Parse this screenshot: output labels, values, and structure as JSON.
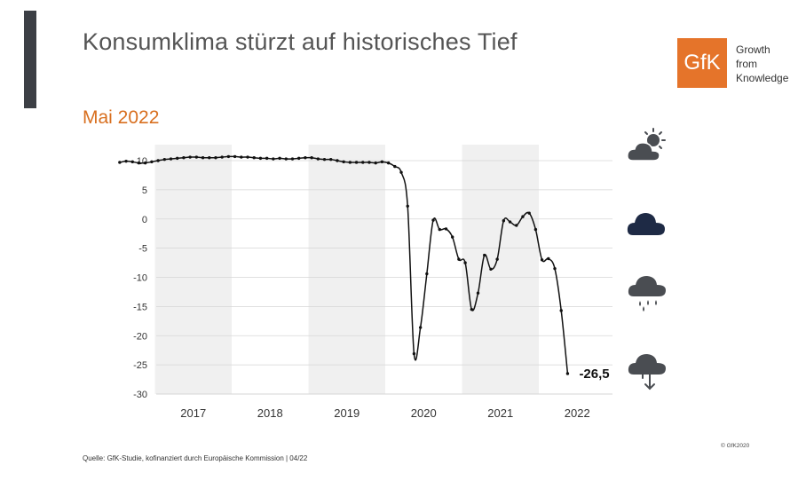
{
  "header": {
    "title": "Konsumklima stürzt auf historisches Tief",
    "subtitle": "Mai 2022"
  },
  "logo": {
    "mark": "GfK",
    "line1": "Growth",
    "line2": "from",
    "line3": "Knowledge",
    "color": "#e5742a"
  },
  "footer": {
    "source": "Quelle: GfK-Studie, kofinanziert durch Europäische Kommission | 04/22",
    "copyright": "© GfK2020"
  },
  "icons": [
    "sun-cloud-icon",
    "cloud-icon",
    "rain-cloud-icon",
    "storm-cloud-icon"
  ],
  "colors": {
    "shade": "#f0f0f0",
    "line": "#111111",
    "grid": "#d6d6d6",
    "icon_gray": "#4a4d52",
    "icon_navy": "#1e2a45"
  },
  "chart_data": {
    "type": "line",
    "title": "",
    "xlabel": "",
    "ylabel": "",
    "ylim": [
      -30,
      10
    ],
    "yticks": [
      10,
      5,
      0,
      -5,
      -10,
      -15,
      -20,
      -25,
      -30
    ],
    "year_labels": [
      "2017",
      "2018",
      "2019",
      "2020",
      "2021",
      "2022"
    ],
    "shaded_years": [
      "2017",
      "2019",
      "2021"
    ],
    "x_start": "2016-07",
    "last_value_label": "-26,5",
    "series": [
      {
        "values": [
          9.7,
          9.9,
          9.8,
          9.6,
          9.6,
          9.8,
          10.0,
          10.2,
          10.3,
          10.4,
          10.5,
          10.6,
          10.6,
          10.5,
          10.5,
          10.5,
          10.6,
          10.7,
          10.7,
          10.6,
          10.6,
          10.5,
          10.4,
          10.4,
          10.3,
          10.4,
          10.3,
          10.3,
          10.4,
          10.5,
          10.5,
          10.3,
          10.2,
          10.2,
          10.0,
          9.8,
          9.7,
          9.7,
          9.7,
          9.7,
          9.6,
          9.8,
          9.6,
          9.0,
          8.0,
          2.2,
          -23.1,
          -18.6,
          -9.4,
          -0.2,
          -1.8,
          -1.7,
          -3.1,
          -6.9,
          -7.5,
          -15.5,
          -12.7,
          -6.2,
          -8.6,
          -6.9,
          -0.3,
          -0.5,
          -1.1,
          0.4,
          1.0,
          -1.8,
          -7.0,
          -6.8,
          -8.5,
          -15.7,
          -26.5
        ]
      }
    ]
  }
}
